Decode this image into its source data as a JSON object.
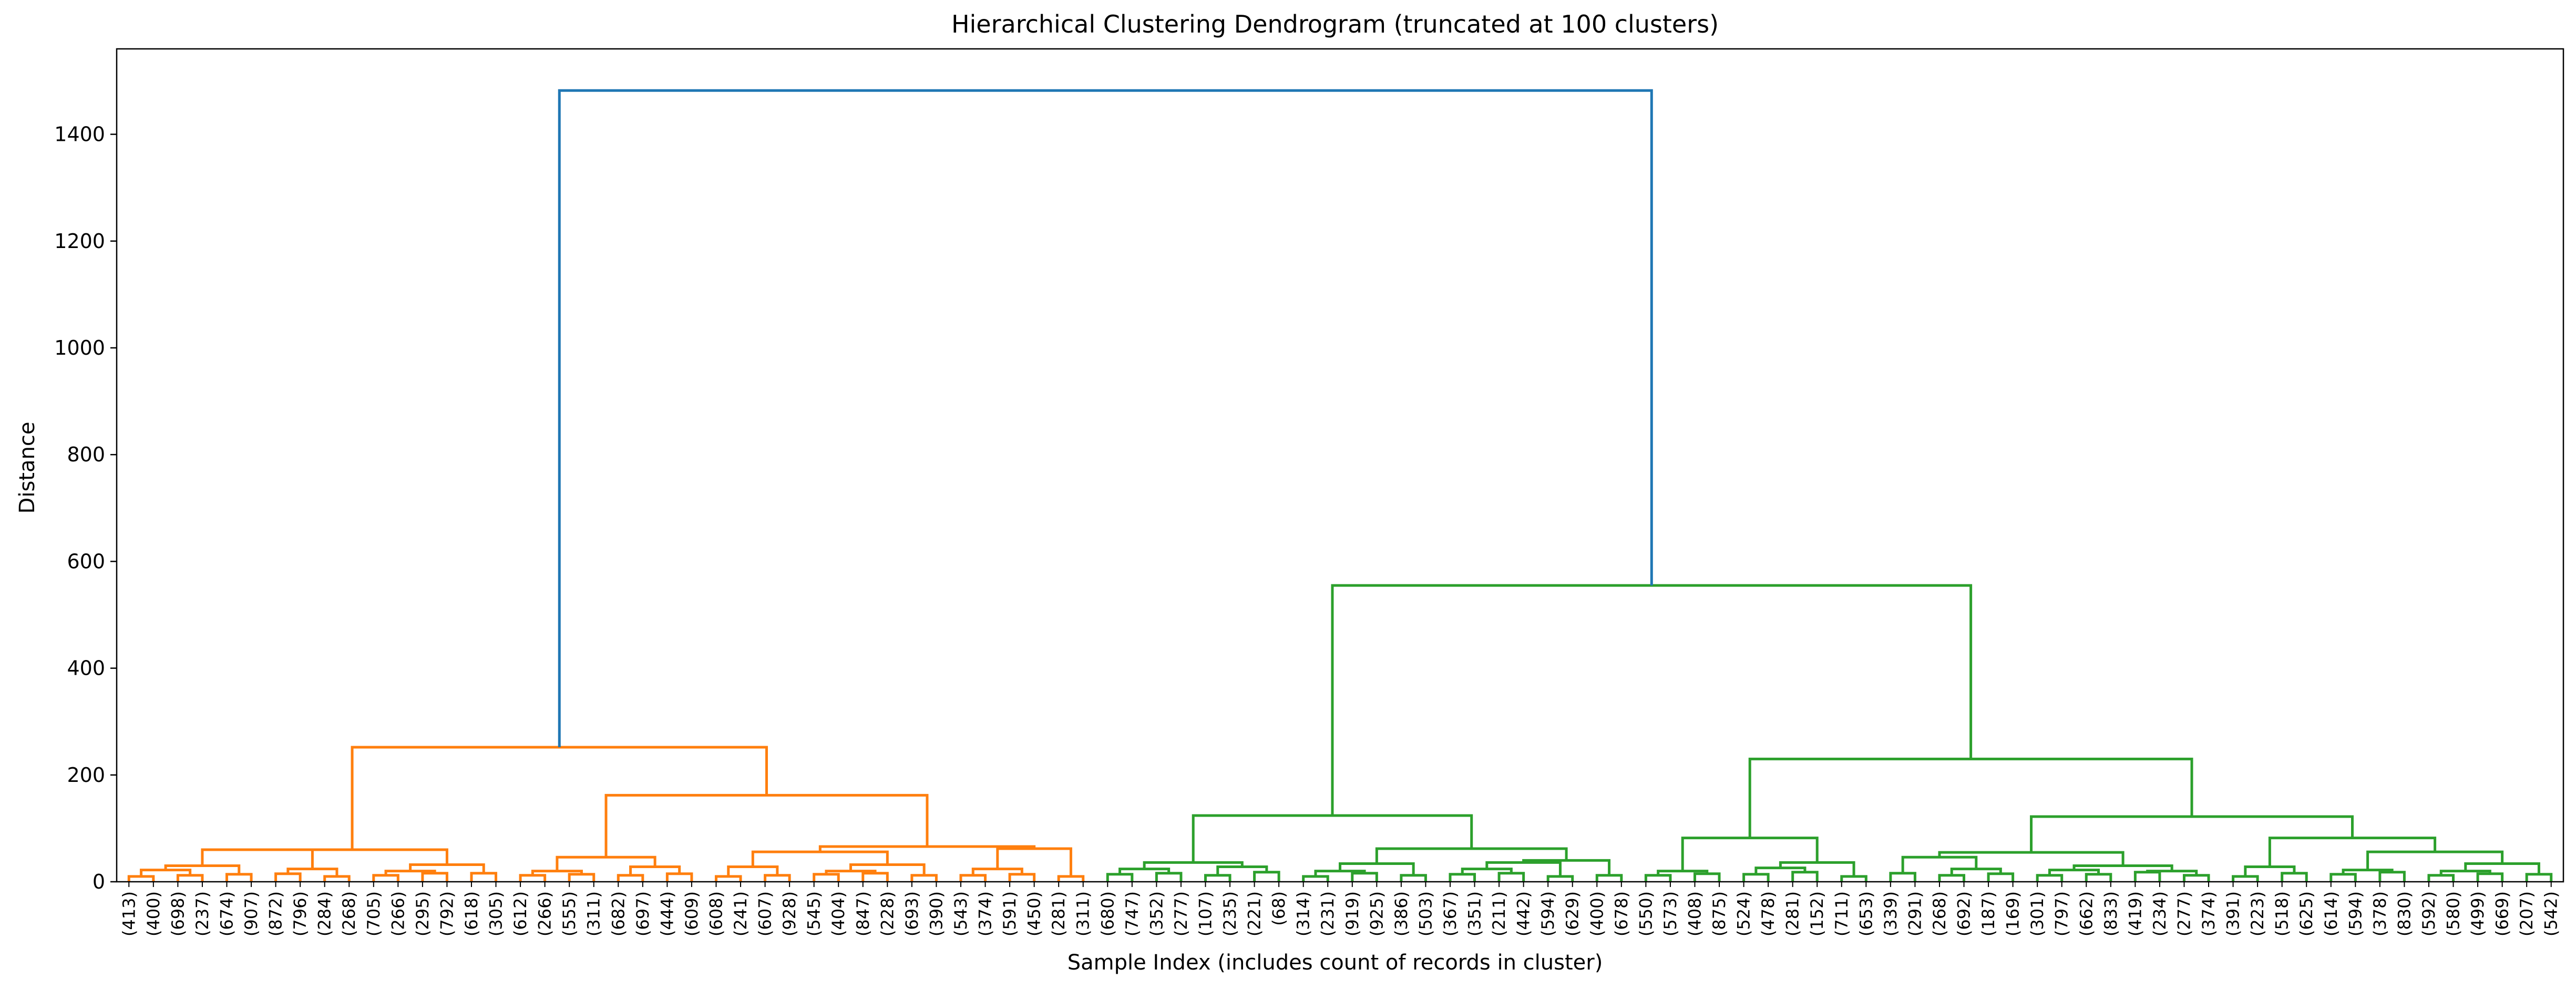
{
  "chart_data": {
    "type": "dendrogram",
    "title": "Hierarchical Clustering Dendrogram (truncated at 100 clusters)",
    "xlabel": "Sample Index (includes count of records in cluster)",
    "ylabel": "Distance",
    "ylim": [
      0,
      1560
    ],
    "yticks": [
      0,
      200,
      400,
      600,
      800,
      1000,
      1200,
      1400
    ],
    "grid": false,
    "colors": {
      "root": "#1f77b4",
      "cluster_1": "#ff7f0e",
      "cluster_2": "#2ca02c"
    },
    "leaves": [
      "(413)",
      "(400)",
      "(698)",
      "(237)",
      "(674)",
      "(907)",
      "(872)",
      "(796)",
      "(284)",
      "(268)",
      "(705)",
      "(266)",
      "(295)",
      "(792)",
      "(618)",
      "(305)",
      "(612)",
      "(266)",
      "(555)",
      "(311)",
      "(682)",
      "(697)",
      "(444)",
      "(609)",
      "(608)",
      "(241)",
      "(607)",
      "(928)",
      "(545)",
      "(404)",
      "(847)",
      "(228)",
      "(693)",
      "(390)",
      "(543)",
      "(374)",
      "(591)",
      "(450)",
      "(281)",
      "(311)",
      "(680)",
      "(747)",
      "(352)",
      "(277)",
      "(107)",
      "(235)",
      "(221)",
      "(68)",
      "(314)",
      "(231)",
      "(919)",
      "(925)",
      "(386)",
      "(503)",
      "(367)",
      "(351)",
      "(211)",
      "(442)",
      "(594)",
      "(629)",
      "(400)",
      "(678)",
      "(550)",
      "(573)",
      "(408)",
      "(875)",
      "(524)",
      "(478)",
      "(281)",
      "(152)",
      "(711)",
      "(653)",
      "(339)",
      "(291)",
      "(268)",
      "(692)",
      "(187)",
      "(169)",
      "(301)",
      "(797)",
      "(662)",
      "(833)",
      "(419)",
      "(234)",
      "(277)",
      "(374)",
      "(391)",
      "(223)",
      "(518)",
      "(625)",
      "(614)",
      "(594)",
      "(378)",
      "(830)",
      "(592)",
      "(580)",
      "(499)",
      "(669)",
      "(207)",
      "(542)"
    ],
    "links": [
      [
        0,
        1,
        10,
        "cluster_1"
      ],
      [
        2,
        3,
        12,
        "cluster_1"
      ],
      [
        "L0",
        "L1",
        22,
        "cluster_1"
      ],
      [
        4,
        5,
        14,
        "cluster_1"
      ],
      [
        "L2",
        "L3",
        30,
        "cluster_1"
      ],
      [
        6,
        7,
        15,
        "cluster_1"
      ],
      [
        8,
        9,
        10,
        "cluster_1"
      ],
      [
        "L5",
        "L6",
        24,
        "cluster_1"
      ],
      [
        "L4",
        "L7",
        60,
        "cluster_1"
      ],
      [
        10,
        11,
        12,
        "cluster_1"
      ],
      [
        12,
        13,
        16,
        "cluster_1"
      ],
      [
        "L9",
        "L10",
        20,
        "cluster_1"
      ],
      [
        14,
        15,
        16,
        "cluster_1"
      ],
      [
        "L11",
        "L12",
        32,
        "cluster_1"
      ],
      [
        "L8",
        "L13",
        60,
        "cluster_1"
      ],
      [
        16,
        17,
        12,
        "cluster_1"
      ],
      [
        18,
        19,
        14,
        "cluster_1"
      ],
      [
        "L15",
        "L16",
        20,
        "cluster_1"
      ],
      [
        20,
        21,
        12,
        "cluster_1"
      ],
      [
        22,
        23,
        15,
        "cluster_1"
      ],
      [
        "L18",
        "L19",
        28,
        "cluster_1"
      ],
      [
        "L17",
        "L20",
        46,
        "cluster_1"
      ],
      [
        24,
        25,
        10,
        "cluster_1"
      ],
      [
        26,
        27,
        12,
        "cluster_1"
      ],
      [
        "L22",
        "L23",
        28,
        "cluster_1"
      ],
      [
        28,
        29,
        14,
        "cluster_1"
      ],
      [
        30,
        31,
        16,
        "cluster_1"
      ],
      [
        "L25",
        "L26",
        20,
        "cluster_1"
      ],
      [
        32,
        33,
        12,
        "cluster_1"
      ],
      [
        "L27",
        "L28",
        32,
        "cluster_1"
      ],
      [
        "L24",
        "L29",
        56,
        "cluster_1"
      ],
      [
        34,
        35,
        12,
        "cluster_1"
      ],
      [
        36,
        37,
        14,
        "cluster_1"
      ],
      [
        "L31",
        "L32",
        24,
        "cluster_1"
      ],
      [
        38,
        39,
        10,
        "cluster_1"
      ],
      [
        "L33",
        "L34",
        62,
        "cluster_1"
      ],
      [
        "L30",
        "L35",
        66,
        "cluster_1"
      ],
      [
        "L21",
        "L36",
        162,
        "cluster_1"
      ],
      [
        "L14",
        "L37",
        252,
        "cluster_1"
      ],
      [
        40,
        41,
        14,
        "cluster_2"
      ],
      [
        42,
        43,
        16,
        "cluster_2"
      ],
      [
        "L39",
        "L40",
        24,
        "cluster_2"
      ],
      [
        44,
        45,
        12,
        "cluster_2"
      ],
      [
        46,
        47,
        18,
        "cluster_2"
      ],
      [
        "L42",
        "L43",
        28,
        "cluster_2"
      ],
      [
        "L41",
        "L44",
        36,
        "cluster_2"
      ],
      [
        48,
        49,
        10,
        "cluster_2"
      ],
      [
        50,
        51,
        16,
        "cluster_2"
      ],
      [
        "L46",
        "L47",
        20,
        "cluster_2"
      ],
      [
        52,
        53,
        12,
        "cluster_2"
      ],
      [
        "L48",
        "L49",
        34,
        "cluster_2"
      ],
      [
        54,
        55,
        14,
        "cluster_2"
      ],
      [
        56,
        57,
        16,
        "cluster_2"
      ],
      [
        "L51",
        "L52",
        24,
        "cluster_2"
      ],
      [
        58,
        59,
        10,
        "cluster_2"
      ],
      [
        "L53",
        "L54",
        36,
        "cluster_2"
      ],
      [
        60,
        61,
        12,
        "cluster_2"
      ],
      [
        "L55",
        "L56",
        40,
        "cluster_2"
      ],
      [
        "L50",
        "L57",
        62,
        "cluster_2"
      ],
      [
        "L45",
        "L58",
        124,
        "cluster_2"
      ],
      [
        62,
        63,
        12,
        "cluster_2"
      ],
      [
        64,
        65,
        15,
        "cluster_2"
      ],
      [
        "L60",
        "L61",
        20,
        "cluster_2"
      ],
      [
        66,
        67,
        14,
        "cluster_2"
      ],
      [
        68,
        69,
        18,
        "cluster_2"
      ],
      [
        "L63",
        "L64",
        26,
        "cluster_2"
      ],
      [
        70,
        71,
        10,
        "cluster_2"
      ],
      [
        "L65",
        "L66",
        36,
        "cluster_2"
      ],
      [
        "L62",
        "L67",
        82,
        "cluster_2"
      ],
      [
        72,
        73,
        16,
        "cluster_2"
      ],
      [
        74,
        75,
        12,
        "cluster_2"
      ],
      [
        76,
        77,
        15,
        "cluster_2"
      ],
      [
        "L70",
        "L71",
        24,
        "cluster_2"
      ],
      [
        "L69",
        "L72",
        46,
        "cluster_2"
      ],
      [
        78,
        79,
        12,
        "cluster_2"
      ],
      [
        80,
        81,
        14,
        "cluster_2"
      ],
      [
        "L74",
        "L75",
        22,
        "cluster_2"
      ],
      [
        82,
        83,
        18,
        "cluster_2"
      ],
      [
        84,
        85,
        12,
        "cluster_2"
      ],
      [
        "L77",
        "L78",
        20,
        "cluster_2"
      ],
      [
        "L76",
        "L79",
        30,
        "cluster_2"
      ],
      [
        "L73",
        "L80",
        55,
        "cluster_2"
      ],
      [
        86,
        87,
        10,
        "cluster_2"
      ],
      [
        88,
        89,
        16,
        "cluster_2"
      ],
      [
        "L82",
        "L83",
        28,
        "cluster_2"
      ],
      [
        90,
        91,
        14,
        "cluster_2"
      ],
      [
        92,
        93,
        18,
        "cluster_2"
      ],
      [
        "L85",
        "L86",
        22,
        "cluster_2"
      ],
      [
        94,
        95,
        12,
        "cluster_2"
      ],
      [
        96,
        97,
        15,
        "cluster_2"
      ],
      [
        "L88",
        "L89",
        20,
        "cluster_2"
      ],
      [
        98,
        99,
        14,
        "cluster_2"
      ],
      [
        "L90",
        "L91",
        34,
        "cluster_2"
      ],
      [
        "L87",
        "L92",
        56,
        "cluster_2"
      ],
      [
        "L84",
        "L93",
        82,
        "cluster_2"
      ],
      [
        "L81",
        "L94",
        122,
        "cluster_2"
      ],
      [
        "L68",
        "L95",
        230,
        "cluster_2"
      ],
      [
        "L59",
        "L96",
        555,
        "cluster_2"
      ],
      [
        "L38",
        "L97",
        1482,
        "root"
      ]
    ]
  }
}
